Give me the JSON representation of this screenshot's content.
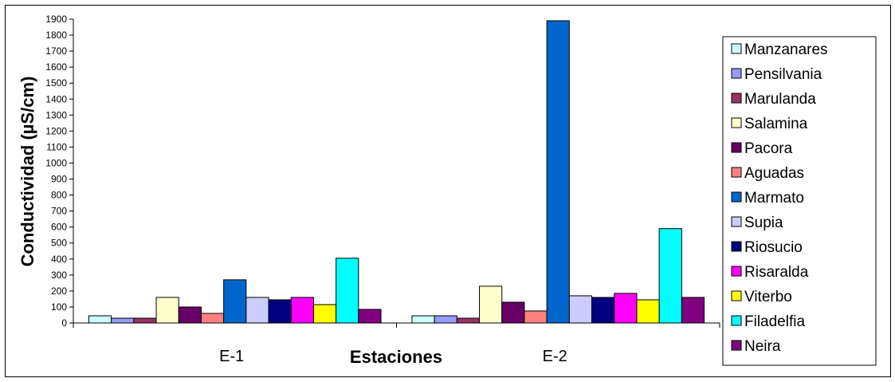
{
  "chart_data": {
    "type": "bar",
    "title": "",
    "xlabel": "Estaciones",
    "ylabel": "Conductividad (µS/cm)",
    "ylim": [
      0,
      1900
    ],
    "yticks": [
      0,
      100,
      200,
      300,
      400,
      500,
      600,
      700,
      800,
      900,
      1000,
      1100,
      1200,
      1300,
      1400,
      1500,
      1600,
      1700,
      1800,
      1900
    ],
    "categories": [
      "E-1",
      "E-2"
    ],
    "legend_position": "right",
    "grid": false,
    "series": [
      {
        "name": "Manzanares",
        "color": "#CCFFFF",
        "values": [
          45,
          45
        ]
      },
      {
        "name": "Pensilvania",
        "color": "#9999FF",
        "values": [
          30,
          45
        ]
      },
      {
        "name": "Marulanda",
        "color": "#993366",
        "values": [
          30,
          30
        ]
      },
      {
        "name": "Salamina",
        "color": "#FFFFCC",
        "values": [
          160,
          230
        ]
      },
      {
        "name": "Pacora",
        "color": "#660066",
        "values": [
          100,
          130
        ]
      },
      {
        "name": "Aguadas",
        "color": "#FF8080",
        "values": [
          60,
          75
        ]
      },
      {
        "name": "Marmato",
        "color": "#0066CC",
        "values": [
          270,
          1890
        ]
      },
      {
        "name": "Supia",
        "color": "#CCCCFF",
        "values": [
          160,
          170
        ]
      },
      {
        "name": "Riosucio",
        "color": "#000080",
        "values": [
          145,
          160
        ]
      },
      {
        "name": "Risaralda",
        "color": "#FF00FF",
        "values": [
          160,
          185
        ]
      },
      {
        "name": "Viterbo",
        "color": "#FFFF00",
        "values": [
          115,
          145
        ]
      },
      {
        "name": "Filadelfia",
        "color": "#00FFFF",
        "values": [
          405,
          590
        ]
      },
      {
        "name": "Neira",
        "color": "#800080",
        "values": [
          85,
          160
        ]
      }
    ]
  }
}
